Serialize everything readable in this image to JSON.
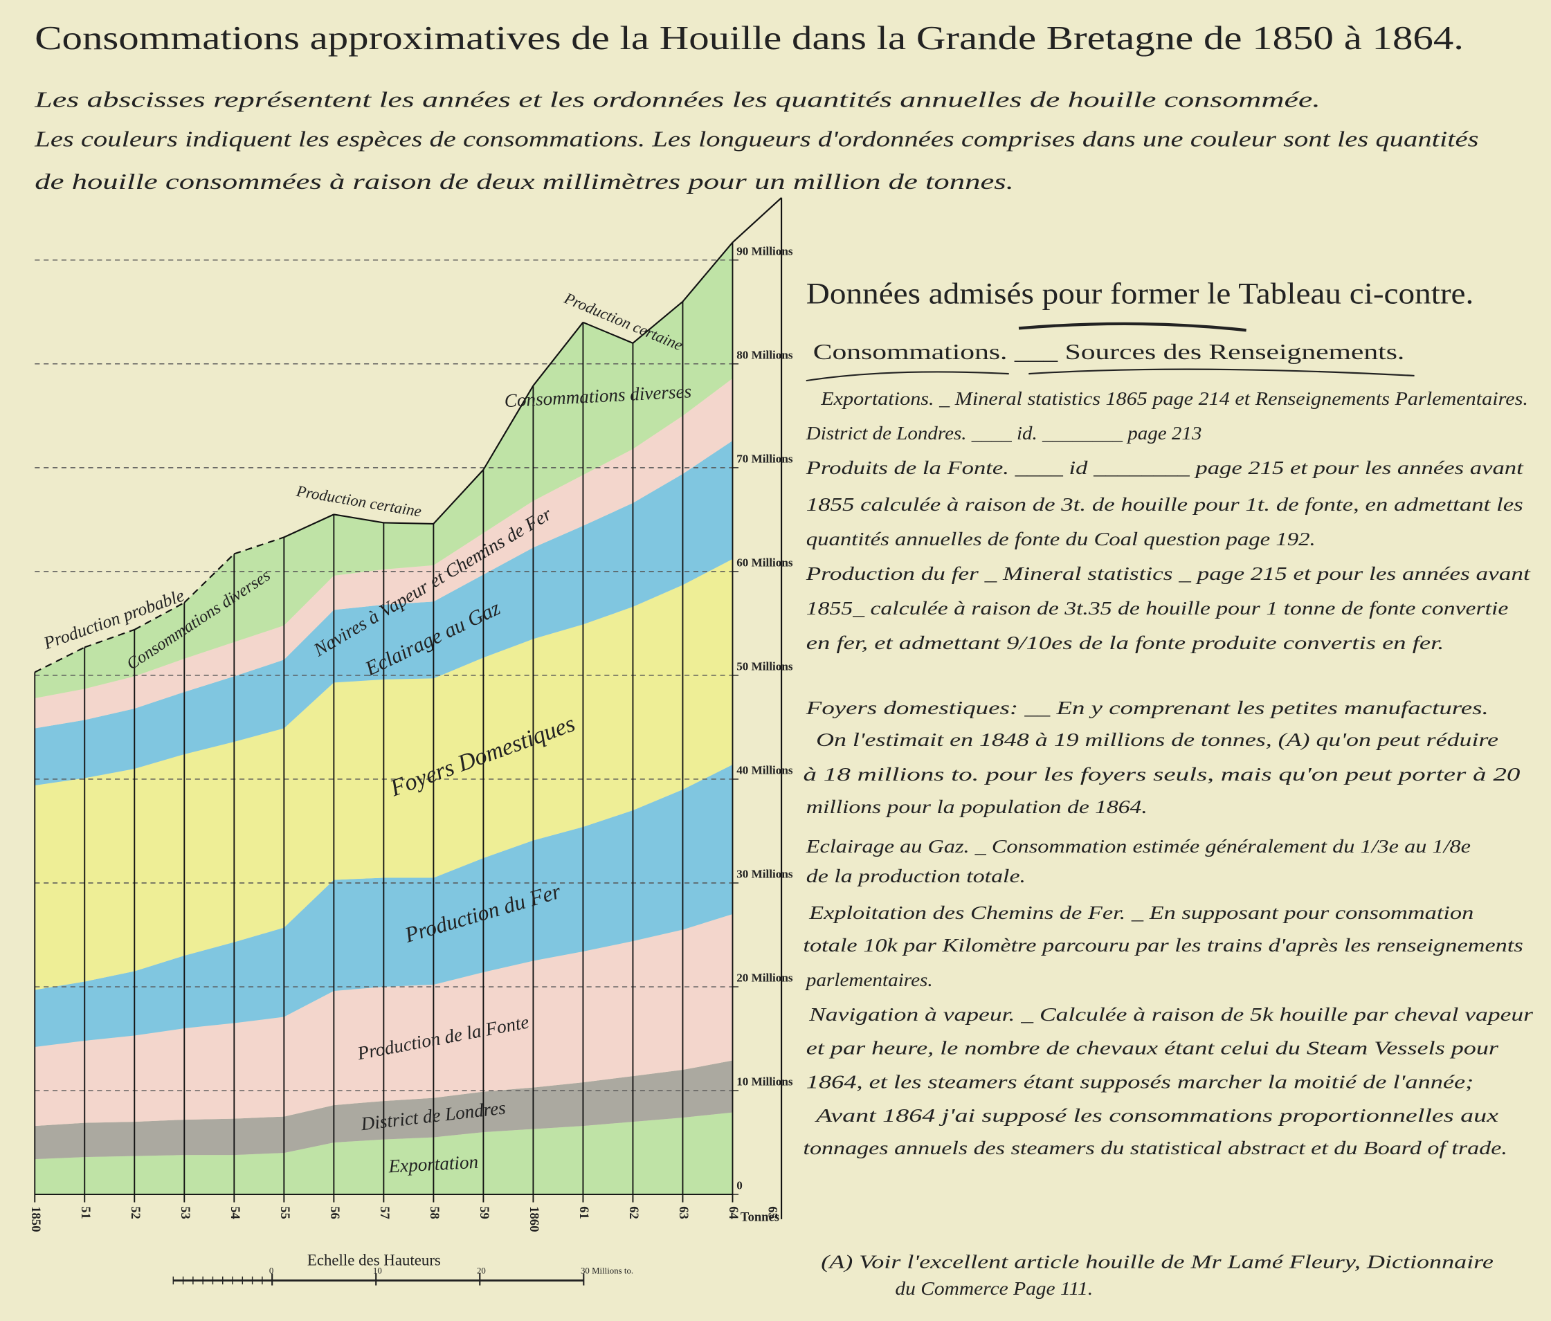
{
  "chart_data": {
    "type": "area",
    "title": "Consommations approximatives de la Houille dans la Grande Bretagne de 1850 à 1864.",
    "subtitle": [
      "Les abscisses représentent les années et les ordonnées les quantités annuelles de houille consommée.",
      "Les couleurs indiquent les espèces de consommations. Les longueurs d'ordonnées comprises dans une couleur sont les quantités",
      "de houille consommées à raison de deux millimètres pour un million de tonnes."
    ],
    "stacked": true,
    "categories": [
      "1850",
      "51",
      "52",
      "53",
      "54",
      "55",
      "56",
      "57",
      "58",
      "59",
      "1860",
      "61",
      "62",
      "63",
      "64"
    ],
    "series": [
      {
        "name": "Exportation",
        "color": "#bfe3a6",
        "values": [
          3.4,
          3.6,
          3.7,
          3.8,
          3.8,
          4.0,
          5.0,
          5.3,
          5.5,
          6.0,
          6.3,
          6.6,
          7.0,
          7.4,
          7.9
        ]
      },
      {
        "name": "District de Londres",
        "color": "#aba9a0",
        "values": [
          3.2,
          3.3,
          3.3,
          3.4,
          3.5,
          3.5,
          3.6,
          3.7,
          3.8,
          3.9,
          4.0,
          4.2,
          4.4,
          4.6,
          5.0
        ]
      },
      {
        "name": "Production de la Fonte",
        "color": "#f3d6cc",
        "values": [
          7.6,
          7.9,
          8.3,
          8.8,
          9.2,
          9.6,
          11.0,
          11.0,
          10.9,
          11.5,
          12.2,
          12.6,
          13.0,
          13.5,
          14.1
        ]
      },
      {
        "name": "Production du Fer",
        "color": "#80c6e0",
        "values": [
          5.5,
          5.7,
          6.2,
          7.0,
          7.8,
          8.6,
          10.7,
          10.5,
          10.3,
          11.0,
          11.6,
          12.0,
          12.6,
          13.5,
          14.4
        ]
      },
      {
        "name": "Foyers Domestiques",
        "color": "#eeee96",
        "values": [
          19.7,
          19.6,
          19.5,
          19.4,
          19.3,
          19.2,
          19.0,
          19.1,
          19.2,
          19.3,
          19.4,
          19.5,
          19.6,
          19.7,
          19.8
        ]
      },
      {
        "name": "Eclairage au Gaz",
        "color": "#80c6e0",
        "values": [
          5.5,
          5.6,
          5.8,
          6.0,
          6.3,
          6.6,
          7.0,
          7.2,
          7.4,
          8.0,
          8.8,
          9.5,
          10.0,
          10.7,
          11.4
        ]
      },
      {
        "name": "Navires à Vapeur et Chemins de Fer",
        "color": "#f3d6cc",
        "values": [
          2.9,
          3.0,
          3.1,
          3.2,
          3.3,
          3.3,
          3.3,
          3.4,
          3.5,
          4.0,
          4.5,
          4.9,
          5.2,
          5.6,
          6.0
        ]
      },
      {
        "name": "Consommations diverses",
        "color": "#bfe3a6",
        "values": [
          2.5,
          4.0,
          4.5,
          5.4,
          8.5,
          8.5,
          5.9,
          4.5,
          4.0,
          6.1,
          11.1,
          14.7,
          10.2,
          11.0,
          13.1
        ]
      }
    ],
    "ylim": [
      0,
      90
    ],
    "yticks": [
      0,
      {
        "value": 10,
        "label": "10 Millions"
      },
      {
        "value": 20,
        "label": "20 Millions"
      },
      {
        "value": 30,
        "label": "30 Millions"
      },
      {
        "value": 40,
        "label": "40 Millions"
      },
      {
        "value": 50,
        "label": "50 Millions"
      },
      {
        "value": 60,
        "label": "60 Millions"
      },
      {
        "value": 70,
        "label": "70 Millions"
      },
      {
        "value": 80,
        "label": "80 Millions"
      },
      {
        "value": 90,
        "label": "90 Millions"
      }
    ],
    "grid": true,
    "y_unit": "Tonnes",
    "x_end_label": "65",
    "annotations": [
      "Production probable",
      "Production certaine"
    ],
    "scale": {
      "title": "Echelle des Hauteurs",
      "ticks": [
        0,
        10,
        20,
        {
          "value": 30,
          "label": "30 Millions to."
        }
      ]
    }
  },
  "notes": {
    "heading": "Données admisés pour former le Tableau ci-contre.",
    "columns": "Consommations. ___ Sources des Renseignements.",
    "lines": [
      "Exportations. _ Mineral statistics 1865 page 214 et Renseignements Parlementaires.",
      "District de Londres. ____ id. ________ page 213",
      "Produits de la Fonte. ____ id ________ page 215 et pour les années avant",
      "1855 calculée à raison de 3t. de houille pour 1t. de fonte, en admettant les",
      "quantités annuelles de fonte du Coal question page 192.",
      "Production du fer _ Mineral statistics _ page 215 et pour les années avant",
      "1855_ calculée à raison de 3t.35 de houille pour 1 tonne de fonte convertie",
      "en fer, et admettant 9/10es de la fonte produite convertis en fer.",
      "Foyers domestiques: __ En y comprenant les petites manufactures.",
      "On l'estimait en 1848 à 19 millions de tonnes, (A) qu'on peut réduire",
      "à 18 millions to. pour les foyers seuls, mais qu'on peut porter à 20",
      "millions pour la population de 1864.",
      "Eclairage au Gaz. _ Consommation estimée généralement du 1/3e au 1/8e",
      "de la production totale.",
      "Exploitation des Chemins de Fer. _ En supposant pour consommation",
      "totale 10k par Kilomètre parcouru par les trains d'après les renseignements",
      "parlementaires.",
      "Navigation à vapeur. _ Calculée à raison de 5k houille par cheval vapeur",
      "et par heure, le nombre de chevaux étant celui du Steam Vessels pour",
      "1864, et les steamers étant supposés marcher la moitié de l'année;",
      "Avant 1864 j'ai supposé les consommations proportionnelles aux",
      "tonnages annuels des steamers du statistical abstract et du Board of trade."
    ],
    "footnote": [
      "(A) Voir l'excellent article houille de Mr Lamé Fleury, Dictionnaire",
      "du Commerce Page 111."
    ]
  }
}
